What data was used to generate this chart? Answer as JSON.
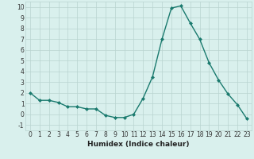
{
  "xlabel": "Humidex (Indice chaleur)",
  "x": [
    0,
    1,
    2,
    3,
    4,
    5,
    6,
    7,
    8,
    9,
    10,
    11,
    12,
    13,
    14,
    15,
    16,
    17,
    18,
    19,
    20,
    21,
    22,
    23
  ],
  "y": [
    2.0,
    1.3,
    1.3,
    1.1,
    0.7,
    0.7,
    0.5,
    0.5,
    -0.1,
    -0.3,
    -0.3,
    0.0,
    1.5,
    3.5,
    7.0,
    9.9,
    10.1,
    8.5,
    7.0,
    4.8,
    3.2,
    1.9,
    0.9,
    -0.4
  ],
  "line_color": "#1a7a6e",
  "marker": "D",
  "marker_size": 2.0,
  "bg_color": "#d9f0ed",
  "grid_color": "#b8d4d0",
  "tick_color": "#333333",
  "ylim": [
    -1.5,
    10.5
  ],
  "xlim": [
    -0.5,
    23.5
  ],
  "yticks": [
    -1,
    0,
    1,
    2,
    3,
    4,
    5,
    6,
    7,
    8,
    9,
    10
  ],
  "xticks": [
    0,
    1,
    2,
    3,
    4,
    5,
    6,
    7,
    8,
    9,
    10,
    11,
    12,
    13,
    14,
    15,
    16,
    17,
    18,
    19,
    20,
    21,
    22,
    23
  ],
  "tick_fontsize": 5.5,
  "xlabel_fontsize": 6.5
}
